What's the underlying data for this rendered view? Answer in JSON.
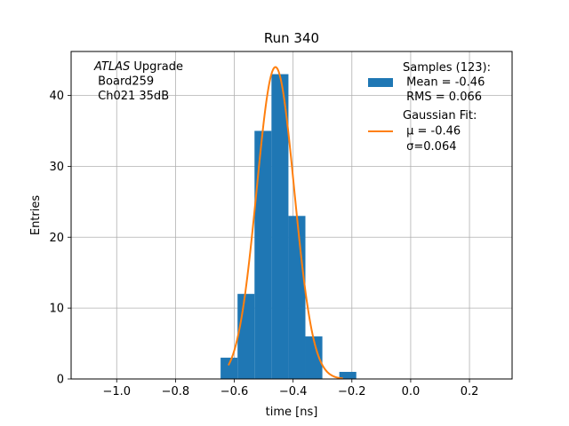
{
  "chart_data": {
    "type": "bar",
    "title": "Run 340",
    "xlabel": "time [ns]",
    "ylabel": "Entries",
    "xlim": [
      -1.155,
      0.345
    ],
    "ylim": [
      0,
      46.2
    ],
    "grid": true,
    "xticks": [
      -1.0,
      -0.8,
      -0.6,
      -0.4,
      -0.2,
      0.0,
      0.2
    ],
    "xtick_labels": [
      "−1.0",
      "−0.8",
      "−0.6",
      "−0.4",
      "−0.2",
      "0.0",
      "0.2"
    ],
    "yticks": [
      0,
      10,
      20,
      30,
      40
    ],
    "ytick_labels": [
      "0",
      "10",
      "20",
      "30",
      "40"
    ],
    "annotation_lines": [
      "ATLAS Upgrade",
      " Board259",
      " Ch021 35dB"
    ],
    "annotation_italic_word": "ATLAS",
    "legend_position": "top-right",
    "histogram": {
      "name_lines": [
        "Samples (123):",
        " Mean = -0.46",
        " RMS = 0.066"
      ],
      "color": "#1f77b4",
      "bins": [
        {
          "x0": -0.6466,
          "x1": -0.5889,
          "count": 3
        },
        {
          "x0": -0.5889,
          "x1": -0.5312,
          "count": 12
        },
        {
          "x0": -0.5312,
          "x1": -0.4735,
          "count": 35
        },
        {
          "x0": -0.4735,
          "x1": -0.4158,
          "count": 43
        },
        {
          "x0": -0.4158,
          "x1": -0.3581,
          "count": 23
        },
        {
          "x0": -0.3581,
          "x1": -0.3004,
          "count": 6
        },
        {
          "x0": -0.3004,
          "x1": -0.2427,
          "count": 0
        },
        {
          "x0": -0.2427,
          "x1": -0.185,
          "count": 1
        }
      ]
    },
    "fit": {
      "name_lines": [
        "Gaussian Fit:",
        " μ = -0.46",
        " σ=0.064"
      ],
      "color": "#ff7f0e",
      "mu": -0.46,
      "sigma": 0.064,
      "amplitude": 44,
      "x_range": [
        -0.62,
        -0.23
      ]
    }
  }
}
